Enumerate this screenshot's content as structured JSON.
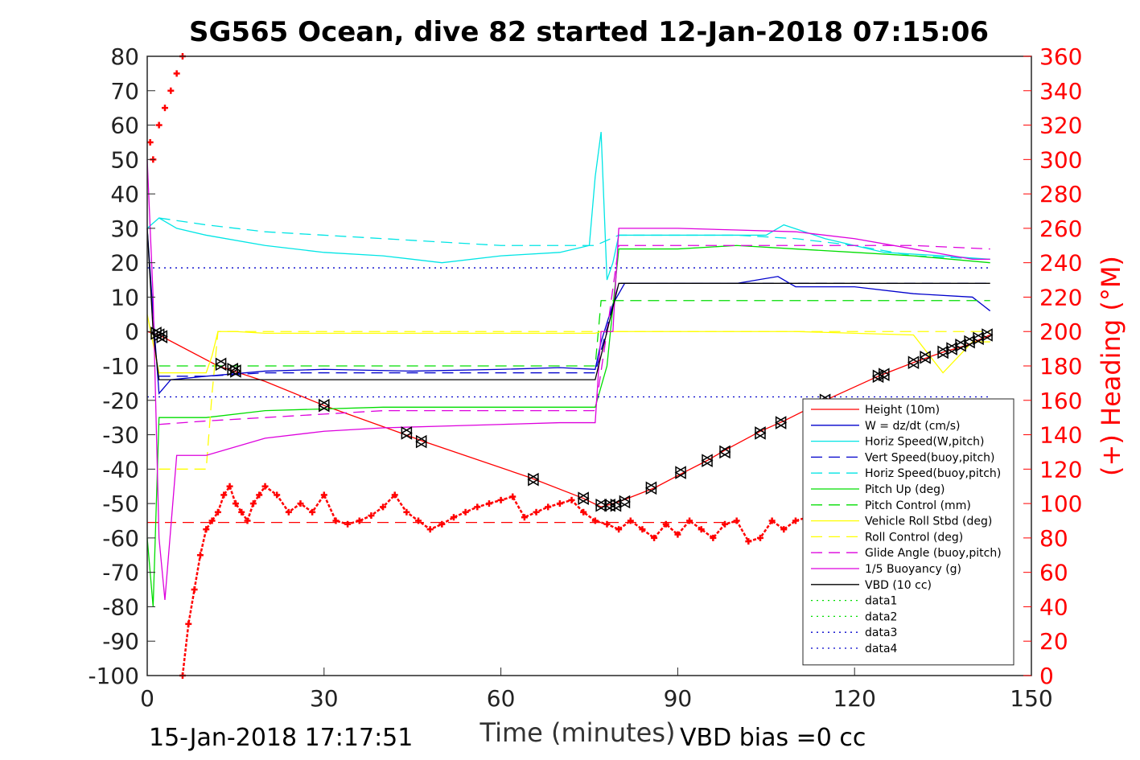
{
  "chart_data": {
    "type": "line",
    "title": "SG565 Ocean, dive 82 started 12-Jan-2018 07:15:06",
    "xlabel": "Time (minutes)",
    "ylabel": "",
    "y2label": "(+) Heading (°M)",
    "xlim": [
      0,
      150
    ],
    "ylim": [
      -100,
      80
    ],
    "y2lim": [
      0,
      360
    ],
    "xticks": [
      "0",
      "30",
      "60",
      "90",
      "120",
      "150"
    ],
    "yticks": [
      "80",
      "70",
      "60",
      "50",
      "40",
      "30",
      "20",
      "10",
      "0",
      "-10",
      "-20",
      "-30",
      "-40",
      "-50",
      "-60",
      "-70",
      "-80",
      "-90",
      "-100"
    ],
    "y2ticks": [
      "360",
      "340",
      "320",
      "300",
      "280",
      "260",
      "240",
      "220",
      "200",
      "180",
      "160",
      "140",
      "120",
      "100",
      "80",
      "60",
      "40",
      "20",
      "0"
    ],
    "grid": true,
    "legend_position": "bottom-right",
    "footer_left": "15-Jan-2018 17:17:51",
    "footer_right": "VBD bias =0 cc",
    "series": [
      {
        "name": "Height (10m)",
        "color": "#ff0000",
        "style": "solid",
        "x": [
          0,
          1,
          2,
          12,
          20,
          30,
          43,
          47,
          65,
          74,
          77,
          80,
          86,
          91,
          95,
          98,
          104,
          108,
          115,
          124,
          130,
          135,
          139,
          143
        ],
        "y": [
          0,
          -0.5,
          -1,
          -10,
          -14.5,
          -21.5,
          -29.5,
          -32,
          -42.5,
          -48.5,
          -51,
          -49.5,
          -45.5,
          -41,
          -37.5,
          -34.5,
          -29,
          -26,
          -20,
          -13,
          -9,
          -6,
          -4,
          -1
        ]
      },
      {
        "name": "W = dz/dt (cm/s)",
        "color": "#0000cc",
        "style": "solid",
        "x": [
          0,
          1,
          2,
          4,
          10,
          20,
          30,
          45,
          60,
          70,
          76,
          77,
          79,
          81,
          90,
          100,
          107,
          110,
          120,
          130,
          140,
          143
        ],
        "y": [
          30,
          5,
          -18,
          -14,
          -13,
          -11.5,
          -11,
          -11.5,
          -11,
          -10.5,
          -11,
          -3,
          8,
          14,
          14,
          14,
          16,
          13,
          13,
          11,
          10,
          6
        ]
      },
      {
        "name": "Horiz Speed(W,pitch)",
        "color": "#00e5e5",
        "style": "solid",
        "x": [
          0,
          2,
          5,
          10,
          20,
          30,
          40,
          50,
          60,
          70,
          75,
          76,
          77,
          78,
          79,
          80,
          85,
          95,
          105,
          108,
          115,
          125,
          135,
          143
        ],
        "y": [
          30,
          33,
          30,
          28,
          25,
          23,
          22,
          20,
          22,
          23,
          25,
          45,
          58,
          15,
          20,
          28,
          28,
          28,
          28,
          31,
          27,
          23,
          22,
          21
        ]
      },
      {
        "name": "Vert Speed(buoy,pitch)",
        "color": "#0000cc",
        "style": "dash",
        "x": [
          2,
          10,
          20,
          40,
          60,
          76,
          80,
          100,
          120,
          140,
          143
        ],
        "y": [
          -13,
          -13,
          -12,
          -12,
          -12,
          -12,
          14,
          14,
          14,
          14,
          14
        ]
      },
      {
        "name": "Horiz Speed(buoy,pitch)",
        "color": "#00e5e5",
        "style": "dash",
        "x": [
          2,
          10,
          20,
          30,
          40,
          50,
          60,
          70,
          76,
          80,
          90,
          100,
          110,
          120,
          130,
          143
        ],
        "y": [
          33,
          31,
          29,
          28,
          27,
          26,
          25,
          25,
          25,
          28,
          28,
          28,
          27,
          25,
          22,
          21
        ]
      },
      {
        "name": "Pitch Up (deg)",
        "color": "#00dd00",
        "style": "solid",
        "x": [
          0,
          1,
          2,
          3,
          10,
          20,
          40,
          60,
          76,
          78,
          80,
          90,
          100,
          110,
          120,
          130,
          143
        ],
        "y": [
          -60,
          -80,
          -25,
          -25,
          -25,
          -23,
          -22,
          -22,
          -22,
          -10,
          24,
          24,
          25,
          24,
          23,
          22,
          20
        ]
      },
      {
        "name": "Pitch Control (mm)",
        "color": "#00dd00",
        "style": "dash",
        "x": [
          2,
          76,
          77,
          80,
          143
        ],
        "y": [
          -10,
          -10,
          9,
          9,
          9
        ]
      },
      {
        "name": "Vehicle Roll Stbd (deg)",
        "color": "#ffff00",
        "style": "solid",
        "x": [
          0,
          2,
          4,
          10,
          11,
          12,
          14,
          15,
          20,
          30,
          40,
          50,
          60,
          70,
          76,
          77,
          80,
          90,
          100,
          110,
          120,
          130,
          135,
          140,
          143
        ],
        "y": [
          5,
          -12,
          -12,
          -12,
          -7,
          0,
          0,
          0,
          -0.5,
          -0.5,
          -0.5,
          -0.5,
          -0.5,
          -0.5,
          -0.5,
          0,
          0,
          0,
          0,
          0,
          -0.5,
          -1,
          -12,
          -3,
          -3
        ]
      },
      {
        "name": "Roll Control (deg)",
        "color": "#ffff00",
        "style": "dash",
        "x": [
          2,
          10,
          11,
          12,
          143
        ],
        "y": [
          -40,
          -40,
          -18,
          0,
          0
        ]
      },
      {
        "name": "Glide Angle (buoy,pitch)",
        "color": "#dd00dd",
        "style": "dash",
        "x": [
          2,
          10,
          20,
          30,
          40,
          60,
          76,
          78,
          80,
          90,
          100,
          110,
          120,
          130,
          143
        ],
        "y": [
          -27,
          -26,
          -25,
          -24,
          -23,
          -23,
          -23,
          0,
          25,
          25,
          25,
          25,
          25,
          25,
          24
        ]
      },
      {
        "name": "1/5 Buoyancy (g)",
        "color": "#dd00dd",
        "style": "solid",
        "x": [
          0,
          1,
          2,
          3,
          5,
          10,
          20,
          30,
          40,
          50,
          60,
          70,
          76,
          77,
          79,
          80,
          90,
          100,
          110,
          120,
          130,
          140,
          143
        ],
        "y": [
          50,
          10,
          -60,
          -78,
          -36,
          -36,
          -31,
          -29,
          -28,
          -27.5,
          -27,
          -26.5,
          -26.5,
          0,
          0,
          30,
          30,
          29.5,
          29,
          27,
          24,
          21,
          21
        ]
      },
      {
        "name": "VBD (10 cc)",
        "color": "#000000",
        "style": "solid",
        "x": [
          0,
          1,
          2,
          76,
          78,
          80,
          81,
          143
        ],
        "y": [
          30,
          0,
          -14,
          -14,
          0,
          14,
          14,
          14
        ]
      },
      {
        "name": "data1",
        "color": "#00dd00",
        "style": "dot",
        "x": [],
        "y": []
      },
      {
        "name": "data2",
        "color": "#00dd00",
        "style": "dot",
        "x": [],
        "y": []
      },
      {
        "name": "data3",
        "color": "#0000cc",
        "style": "dot",
        "x": [
          0,
          143
        ],
        "y": [
          -19,
          -19
        ]
      },
      {
        "name": "data4",
        "color": "#0000cc",
        "style": "dot",
        "x": [
          0,
          143
        ],
        "y": [
          18.5,
          18.5
        ]
      }
    ],
    "heading": {
      "axis": "right",
      "color": "#ff0000",
      "marker": "+",
      "x": [
        0.5,
        1,
        2,
        3,
        4,
        5,
        6,
        6,
        7,
        8,
        9,
        10,
        11,
        12,
        13,
        14,
        15,
        16,
        17,
        18,
        19,
        20,
        22,
        24,
        26,
        28,
        30,
        32,
        34,
        36,
        38,
        40,
        42,
        44,
        46,
        48,
        50,
        52,
        54,
        56,
        58,
        60,
        62,
        64,
        66,
        68,
        70,
        72,
        74,
        76,
        78,
        80,
        82,
        84,
        86,
        88,
        90,
        92,
        94,
        96,
        98,
        100,
        102,
        104,
        106,
        108,
        110,
        112
      ],
      "y": [
        310,
        300,
        320,
        330,
        340,
        350,
        360,
        0,
        30,
        50,
        70,
        85,
        90,
        95,
        105,
        110,
        100,
        95,
        90,
        100,
        105,
        110,
        105,
        95,
        100,
        95,
        105,
        90,
        88,
        90,
        93,
        98,
        105,
        95,
        90,
        85,
        88,
        92,
        95,
        98,
        100,
        102,
        104,
        92,
        95,
        98,
        100,
        102,
        95,
        90,
        88,
        85,
        90,
        85,
        80,
        88,
        82,
        90,
        85,
        80,
        88,
        90,
        78,
        80,
        90,
        85,
        90,
        92
      ]
    },
    "reference_lines": [
      {
        "color": "#ff0000",
        "style": "dash",
        "y": -55.5
      }
    ],
    "triangle_markers": {
      "color": "#000000",
      "x": [
        1.5,
        2,
        2.5,
        12.5,
        14.5,
        15,
        30,
        44,
        46.5,
        65.5,
        74,
        77,
        78.5,
        79.5,
        81,
        85.5,
        90.5,
        95,
        98,
        104,
        107.5,
        115,
        124,
        125,
        130,
        132,
        135,
        136.5,
        138,
        139.5,
        141,
        142.5
      ],
      "y": [
        -0.5,
        -1,
        -1.5,
        -9.5,
        -11,
        -11.5,
        -21.5,
        -29.5,
        -32,
        -43,
        -48.5,
        -50.5,
        -50.5,
        -50.5,
        -49.5,
        -45.5,
        -41,
        -37.5,
        -35,
        -29.5,
        -26.5,
        -20,
        -13,
        -12.5,
        -9,
        -7.5,
        -6,
        -5,
        -4,
        -3,
        -2,
        -1
      ]
    }
  }
}
